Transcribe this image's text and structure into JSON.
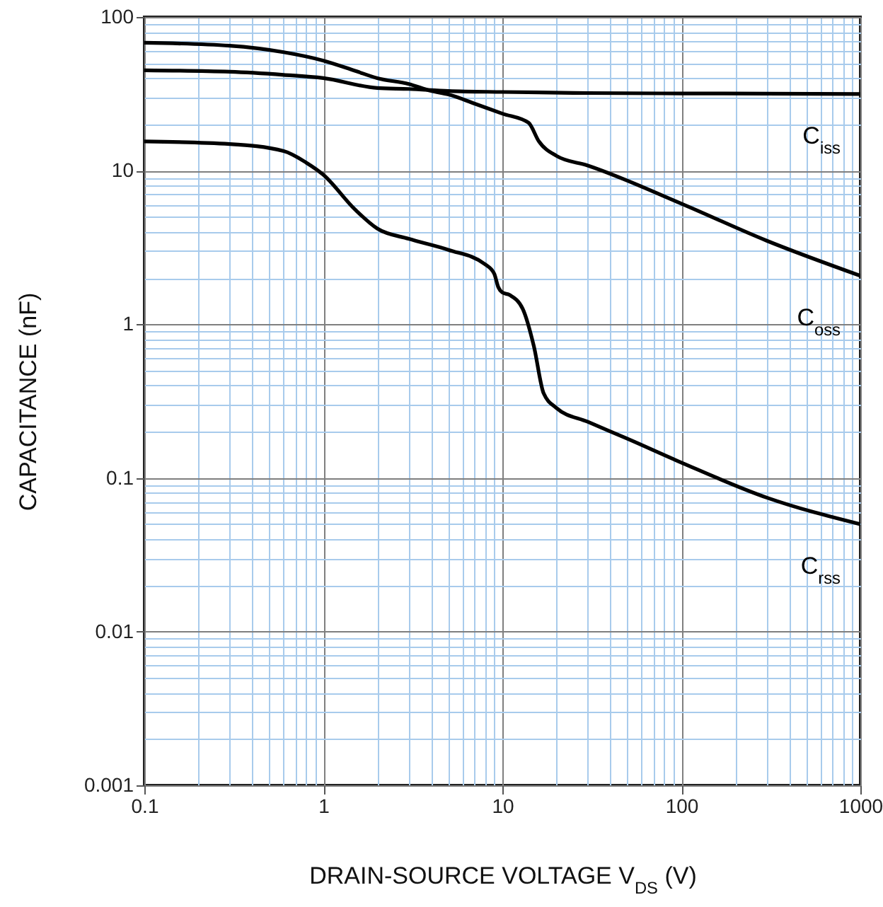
{
  "chart_data": {
    "type": "line",
    "xlabel": "DRAIN-SOURCE VOLTAGE    V$_{DS}$    (V)",
    "ylabel": "CAPACITANCE    (nF)",
    "log": "xy",
    "grid": true,
    "line_style": "solid",
    "marker": "none",
    "xlim": [
      0.1,
      1000
    ],
    "ylim": [
      0.001,
      100
    ],
    "xticks": [
      0.1,
      {
        "value": 0.2,
        "label": null
      },
      {
        "value": 0.3,
        "label": null
      },
      {
        "value": 0.4,
        "label": null
      },
      {
        "value": 0.5,
        "label": null
      },
      {
        "value": 0.6,
        "label": null
      },
      {
        "value": 0.7,
        "label": null
      },
      {
        "value": 0.8,
        "label": null
      },
      {
        "value": 0.9,
        "label": null
      },
      1,
      {
        "value": 2,
        "label": null
      },
      {
        "value": 3,
        "label": null
      },
      {
        "value": 4,
        "label": null
      },
      {
        "value": 5,
        "label": null
      },
      {
        "value": 6,
        "label": null
      },
      {
        "value": 7,
        "label": null
      },
      {
        "value": 8,
        "label": null
      },
      {
        "value": 9,
        "label": null
      },
      10,
      {
        "value": 20,
        "label": null
      },
      {
        "value": 30,
        "label": null
      },
      {
        "value": 40,
        "label": null
      },
      {
        "value": 50,
        "label": null
      },
      {
        "value": 60,
        "label": null
      },
      {
        "value": 70,
        "label": null
      },
      {
        "value": 80,
        "label": null
      },
      {
        "value": 90,
        "label": null
      },
      100,
      {
        "value": 200,
        "label": null
      },
      {
        "value": 300,
        "label": null
      },
      {
        "value": 400,
        "label": null
      },
      {
        "value": 500,
        "label": null
      },
      {
        "value": 600,
        "label": null
      },
      {
        "value": 700,
        "label": null
      },
      {
        "value": 800,
        "label": null
      },
      {
        "value": 900,
        "label": null
      },
      1000
    ],
    "yticks": [
      0.001,
      {
        "value": 0.002,
        "label": null
      },
      {
        "value": 0.003,
        "label": null
      },
      {
        "value": 0.004,
        "label": null
      },
      {
        "value": 0.005,
        "label": null
      },
      {
        "value": 0.006,
        "label": null
      },
      {
        "value": 0.007,
        "label": null
      },
      {
        "value": 0.008,
        "label": null
      },
      {
        "value": 0.009,
        "label": null
      },
      0.01,
      {
        "value": 0.02,
        "label": null
      },
      {
        "value": 0.03,
        "label": null
      },
      {
        "value": 0.04,
        "label": null
      },
      {
        "value": 0.05,
        "label": null
      },
      {
        "value": 0.06,
        "label": null
      },
      {
        "value": 0.07,
        "label": null
      },
      {
        "value": 0.08,
        "label": null
      },
      {
        "value": 0.09,
        "label": null
      },
      0.1,
      {
        "value": 0.2,
        "label": null
      },
      {
        "value": 0.3,
        "label": null
      },
      {
        "value": 0.4,
        "label": null
      },
      {
        "value": 0.5,
        "label": null
      },
      {
        "value": 0.6,
        "label": null
      },
      {
        "value": 0.7,
        "label": null
      },
      {
        "value": 0.8,
        "label": null
      },
      {
        "value": 0.9,
        "label": null
      },
      1,
      {
        "value": 2,
        "label": null
      },
      {
        "value": 3,
        "label": null
      },
      {
        "value": 4,
        "label": null
      },
      {
        "value": 5,
        "label": null
      },
      {
        "value": 6,
        "label": null
      },
      {
        "value": 7,
        "label": null
      },
      {
        "value": 8,
        "label": null
      },
      {
        "value": 9,
        "label": null
      },
      10,
      {
        "value": 20,
        "label": null
      },
      {
        "value": 30,
        "label": null
      },
      {
        "value": 40,
        "label": null
      },
      {
        "value": 50,
        "label": null
      },
      {
        "value": 60,
        "label": null
      },
      {
        "value": 70,
        "label": null
      },
      {
        "value": 80,
        "label": null
      },
      {
        "value": 90,
        "label": null
      },
      100
    ],
    "series": [
      {
        "name": "C$_{iss}$",
        "color": "#000000",
        "x": [
          0.1,
          0.3,
          0.6,
          1,
          2,
          3,
          5,
          10,
          30,
          100,
          300,
          1000
        ],
        "values": [
          45,
          44,
          42,
          40,
          34.5,
          34,
          33,
          32.5,
          32,
          31.8,
          31.7,
          31.5
        ]
      },
      {
        "name": "C$_{oss}$",
        "color": "#000000",
        "x": [
          0.1,
          0.3,
          0.6,
          1,
          1.5,
          2,
          3,
          4,
          5,
          7,
          10,
          14,
          16,
          20,
          30,
          100,
          300,
          1000
        ],
        "values": [
          68,
          65,
          59,
          52,
          44.7,
          40,
          36.6,
          33,
          31.3,
          27.3,
          23.5,
          20.5,
          15.5,
          12.5,
          10.8,
          6.1,
          3.5,
          2.07
        ]
      },
      {
        "name": "C$_{rss}$",
        "color": "#000000",
        "x": [
          0.1,
          0.3,
          0.6,
          0.8,
          1,
          1.5,
          2,
          3,
          5,
          8,
          9,
          9.5,
          10,
          11,
          13,
          15,
          17,
          20,
          30,
          50,
          100,
          300,
          1000
        ],
        "values": [
          15.5,
          14.9,
          13.4,
          11.3,
          9.4,
          5.6,
          4.2,
          3.6,
          3.05,
          2.46,
          2.14,
          1.74,
          1.61,
          1.55,
          1.26,
          0.72,
          0.356,
          0.286,
          0.232,
          0.18,
          0.126,
          0.0745,
          0.05
        ]
      }
    ]
  }
}
